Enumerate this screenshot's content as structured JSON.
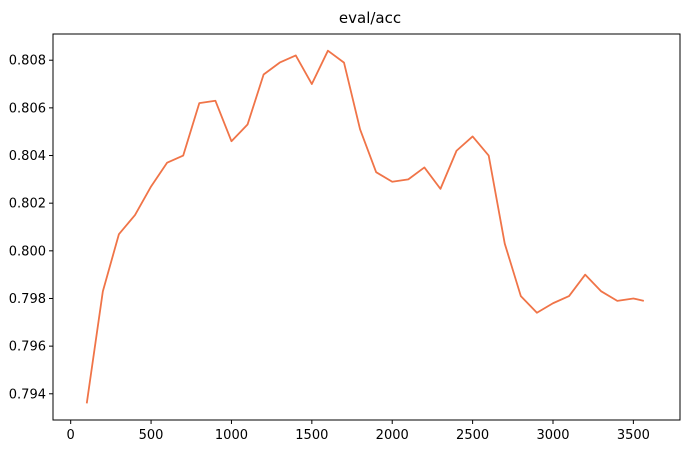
{
  "chart_data": {
    "type": "line",
    "title": "eval/acc",
    "xlabel": "",
    "ylabel": "",
    "xlim": [
      -110,
      3790
    ],
    "ylim": [
      0.7929,
      0.8091
    ],
    "xticks": [
      0,
      500,
      1000,
      1500,
      2000,
      2500,
      3000,
      3500
    ],
    "xtick_labels": [
      "0",
      "500",
      "1000",
      "1500",
      "2000",
      "2500",
      "3000",
      "3500"
    ],
    "yticks": [
      0.794,
      0.796,
      0.798,
      0.8,
      0.802,
      0.804,
      0.806,
      0.808
    ],
    "ytick_labels": [
      "0.794",
      "0.796",
      "0.798",
      "0.800",
      "0.802",
      "0.804",
      "0.806",
      "0.808"
    ],
    "grid": false,
    "series": [
      {
        "color": "#f07448",
        "x": [
          100,
          200,
          300,
          400,
          500,
          600,
          700,
          800,
          900,
          1000,
          1100,
          1200,
          1300,
          1400,
          1500,
          1600,
          1700,
          1800,
          1900,
          2000,
          2100,
          2200,
          2300,
          2400,
          2500,
          2600,
          2700,
          2800,
          2900,
          3000,
          3100,
          3200,
          3300,
          3400,
          3500,
          3565
        ],
        "y": [
          0.7936,
          0.7983,
          0.8007,
          0.8015,
          0.8027,
          0.8037,
          0.804,
          0.8062,
          0.8063,
          0.8046,
          0.8053,
          0.8074,
          0.8079,
          0.8082,
          0.807,
          0.8084,
          0.8079,
          0.8051,
          0.8033,
          0.8029,
          0.803,
          0.8035,
          0.8026,
          0.8042,
          0.8048,
          0.804,
          0.8003,
          0.7981,
          0.7974,
          0.7978,
          0.7981,
          0.799,
          0.7983,
          0.7979,
          0.798,
          0.7979
        ]
      }
    ]
  }
}
